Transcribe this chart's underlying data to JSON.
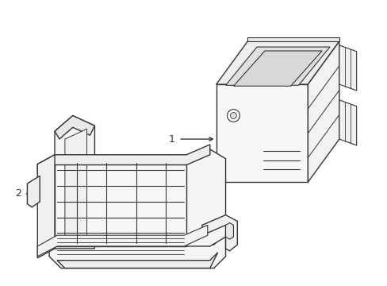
{
  "background_color": "#ffffff",
  "line_color": "#333333",
  "line_width": 1.0,
  "fill_color": "#ffffff",
  "label1": "1",
  "label2": "2",
  "figsize": [
    4.89,
    3.6
  ],
  "dpi": 100
}
